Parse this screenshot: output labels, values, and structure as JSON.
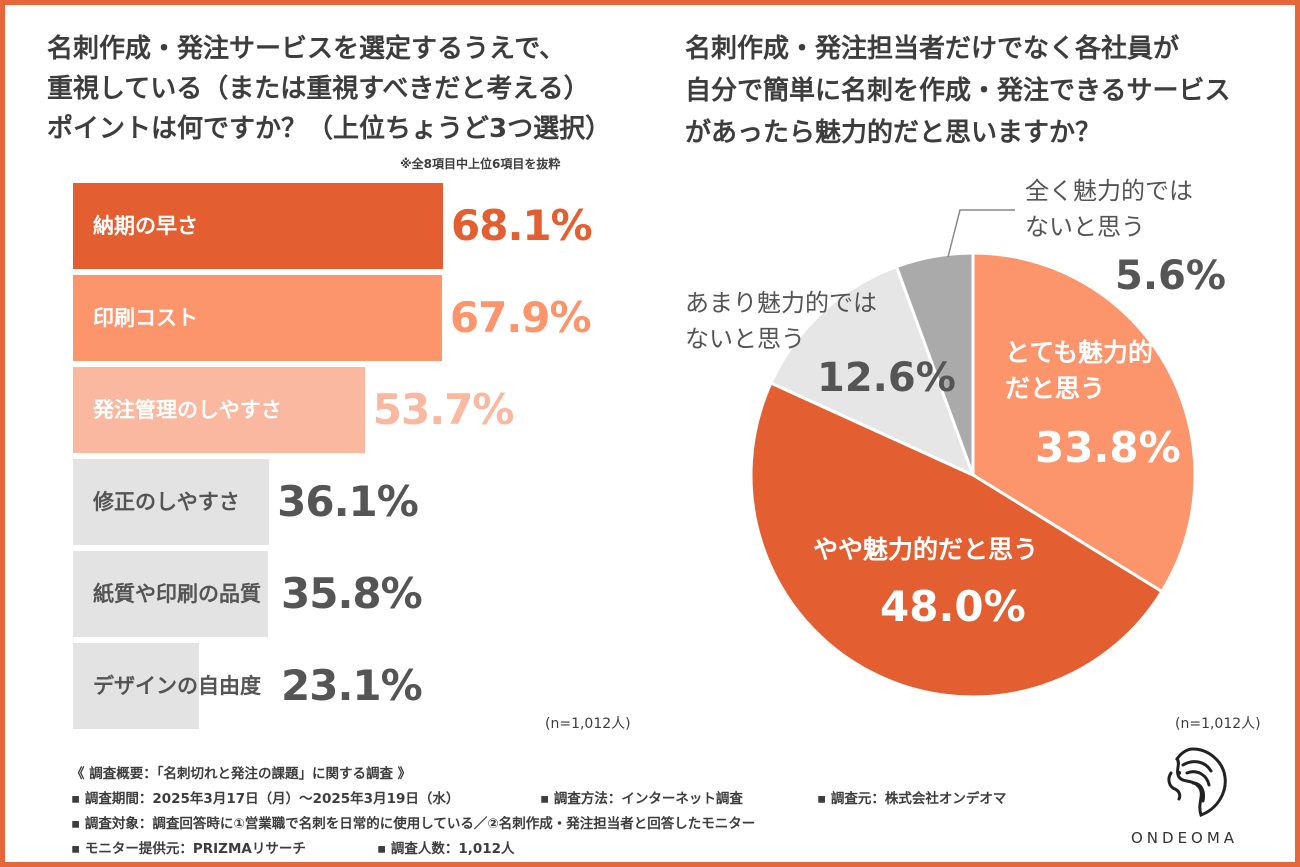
{
  "colors": {
    "border": "#e8673a",
    "dark_orange": "#e35f31",
    "mid_orange": "#fd956c",
    "light_orange": "#fbb8a1",
    "gray_bar": "#e3e3e3",
    "gray_text": "#555555",
    "pie_light_gray": "#e6e6e6",
    "pie_dark_gray": "#aaaaaa"
  },
  "left_chart": {
    "title_lines": [
      "名刺作成・発注サービスを選定するうえで、",
      "重視している（または重視すべきだと考える）",
      "ポイントは何ですか？（上位ちょうど3つ選択）"
    ],
    "note": "※全8項目中上位6項目を抜粋",
    "n_label": "(n=1,012人)"
  },
  "right_chart": {
    "title_lines": [
      "名刺作成・発注担当者だけでなく各社員が",
      "自分で簡単に名刺を作成・発注できるサービス",
      "があったら魅力的だと思いますか？"
    ],
    "n_label": "(n=1,012人)"
  },
  "chart_data": [
    {
      "type": "bar",
      "orientation": "horizontal",
      "categories": [
        "納期の早さ",
        "印刷コスト",
        "発注管理のしやすさ",
        "修正のしやすさ",
        "紙質や印刷の品質",
        "デザインの自由度"
      ],
      "values": [
        68.1,
        67.9,
        53.7,
        36.1,
        35.8,
        23.1
      ],
      "value_labels": [
        "68.1%",
        "67.9%",
        "53.7%",
        "36.1%",
        "35.8%",
        "23.1%"
      ],
      "bar_colors": [
        "#e35f31",
        "#fd956c",
        "#fbb8a1",
        "#e3e3e3",
        "#e3e3e3",
        "#e3e3e3"
      ],
      "label_colors": [
        "#ffffff",
        "#ffffff",
        "#ffffff",
        "#555555",
        "#555555",
        "#555555"
      ],
      "value_colors": [
        "#e35f31",
        "#fd956c",
        "#fbb8a1",
        "#555555",
        "#555555",
        "#555555"
      ],
      "grid": false
    },
    {
      "type": "pie",
      "slices": [
        {
          "label_lines": [
            "とても魅力的",
            "だと思う"
          ],
          "value": 33.8,
          "value_label": "33.8%",
          "color": "#fd956c"
        },
        {
          "label_lines": [
            "やや魅力的だと思う"
          ],
          "value": 48.0,
          "value_label": "48.0%",
          "color": "#e35f31"
        },
        {
          "label_lines": [
            "あまり魅力的では",
            "ないと思う"
          ],
          "value": 12.6,
          "value_label": "12.6%",
          "color": "#e6e6e6"
        },
        {
          "label_lines": [
            "全く魅力的では",
            "ないと思う"
          ],
          "value": 5.6,
          "value_label": "5.6%",
          "color": "#aaaaaa"
        }
      ],
      "start": "12 o'clock",
      "direction": "clockwise"
    }
  ],
  "survey": {
    "heading": "《 調査概要：「名刺切れと発注の課題」に関する調査 》",
    "period": "▪ 調査期間：2025年3月17日（月）〜2025年3月19日（水）",
    "method": "▪ 調査方法：インターネット調査",
    "source": "▪ 調査元：株式会社オンデオマ",
    "target": "▪ 調査対象：調査回答時に①営業職で名刺を日常的に使用している／②名刺作成・発注担当者と回答したモニター",
    "provider": "▪ モニター提供元：PRIZMAリサーチ",
    "count": "▪ 調査人数：1,012人"
  },
  "logo": {
    "name": "ONDEOMA",
    "icon": "lion-head-icon"
  }
}
